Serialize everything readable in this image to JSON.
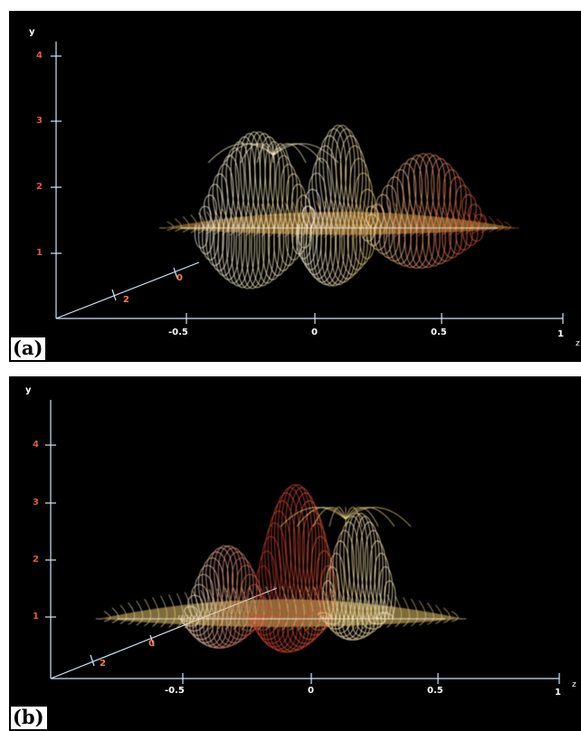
{
  "panels": [
    {
      "id": "a",
      "label": "(a)",
      "y_axis": {
        "label": "y",
        "ticks": [
          "1",
          "2",
          "3",
          "4"
        ]
      },
      "x_axis": {
        "label": "z",
        "ticks": [
          "-0.5",
          "0",
          "0.5",
          "1"
        ]
      },
      "z_axis": {
        "ticks": [
          "0",
          "2"
        ]
      }
    },
    {
      "id": "b",
      "label": "(b)",
      "y_axis": {
        "label": "y",
        "ticks": [
          "1",
          "2",
          "3",
          "4"
        ]
      },
      "x_axis": {
        "label": "z",
        "ticks": [
          "-0.5",
          "0",
          "0.5",
          "1"
        ]
      },
      "z_axis": {
        "ticks": [
          "0",
          "2"
        ]
      }
    }
  ],
  "colors": {
    "background": "#000000",
    "trajectory_light": "#fff6d0",
    "trajectory_warm": "#f2b24a",
    "trajectory_red": "#d8402a",
    "axes": "#cfe6f5",
    "y_tick_labels": "#e35a3a"
  }
}
